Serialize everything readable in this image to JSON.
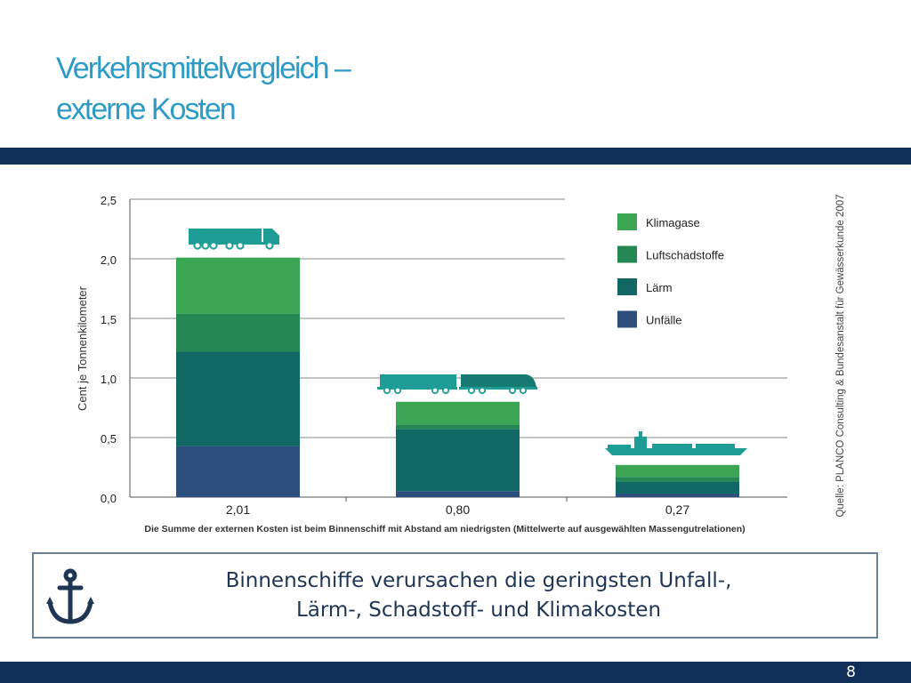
{
  "slide": {
    "title_line1": "Verkehrsmittelvergleich –",
    "title_line2": "externe Kosten",
    "page_number": "8"
  },
  "callout": {
    "icon": "anchor-icon",
    "line1": "Binnenschiffe verursachen die geringsten Unfall-,",
    "line2": "Lärm-, Schadstoff- und Klimakosten"
  },
  "colors": {
    "brand_blue": "#2e9bc7",
    "bar_navy": "#0f2f5a",
    "Klimagase": "#3aa653",
    "Luftschadstoffe": "#258753",
    "Lärm": "#106763",
    "Unfälle": "#2c4f7e",
    "vehicle": "#1e9d96"
  },
  "chart_data": {
    "type": "bar",
    "stacked": true,
    "ylabel": "Cent je Tonnenkilometer",
    "ylim": [
      0,
      2.5
    ],
    "yticks": [
      "0,0",
      "0,5",
      "1,0",
      "1,5",
      "2,0",
      "2,5"
    ],
    "grid": true,
    "legend_position": "top-right",
    "categories": [
      "2,01",
      "0,80",
      "0,27"
    ],
    "category_icons": [
      "truck-icon",
      "train-icon",
      "ship-icon"
    ],
    "series": [
      {
        "name": "Unfälle",
        "values": [
          0.43,
          0.05,
          0.03
        ]
      },
      {
        "name": "Lärm",
        "values": [
          0.79,
          0.52,
          0.1
        ]
      },
      {
        "name": "Luftschadstoffe",
        "values": [
          0.32,
          0.04,
          0.04
        ]
      },
      {
        "name": "Klimagase",
        "values": [
          0.47,
          0.19,
          0.1
        ]
      }
    ],
    "caption": "Die Summe der externen Kosten ist beim Binnenschiff mit Abstand am niedrigsten (Mittelwerte auf ausgewählten Massengutrelationen)",
    "source": "Quelle: PLANCO Consulting & Bundesanstalt für Gewässerkunde 2007"
  }
}
